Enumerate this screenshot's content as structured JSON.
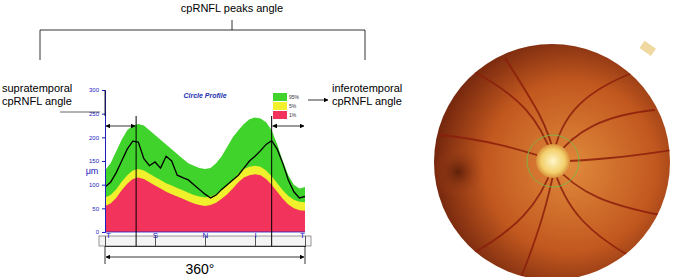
{
  "chart_data": {
    "type": "line",
    "title": "Circle Profile",
    "y_label": "μm",
    "x": [
      0,
      10,
      20,
      30,
      40,
      50,
      60,
      70,
      80,
      90,
      100,
      110,
      120,
      130,
      140,
      150,
      160,
      170,
      180,
      190,
      200,
      210,
      220,
      230,
      240,
      250,
      260,
      270,
      280,
      290,
      300,
      310,
      320,
      330,
      340,
      350,
      360
    ],
    "xlim": [
      0,
      360
    ],
    "xticks": [
      {
        "value": 0,
        "label": "T"
      },
      {
        "value": 90,
        "label": "S"
      },
      {
        "value": 180,
        "label": "N"
      },
      {
        "value": 270,
        "label": "I"
      },
      {
        "value": 360,
        "label": "T"
      }
    ],
    "ylim": [
      0,
      300
    ],
    "yticks": [
      0,
      50,
      100,
      150,
      200,
      250,
      300
    ],
    "grid": false,
    "legend": "upper right",
    "series": [
      {
        "name": "95%",
        "type": "area",
        "color": "#3fd32b",
        "values": [
          130,
          145,
          170,
          195,
          215,
          225,
          228,
          225,
          215,
          205,
          195,
          185,
          175,
          165,
          155,
          145,
          140,
          135,
          133,
          135,
          145,
          160,
          180,
          200,
          215,
          228,
          238,
          242,
          240,
          232,
          215,
          185,
          150,
          120,
          100,
          92,
          95
        ]
      },
      {
        "name": "5%",
        "type": "area",
        "color": "#f0f02c",
        "values": [
          73,
          78,
          90,
          106,
          120,
          130,
          133,
          130,
          123,
          116,
          110,
          103,
          98,
          93,
          88,
          83,
          78,
          75,
          73,
          75,
          80,
          88,
          98,
          110,
          123,
          133,
          138,
          140,
          138,
          130,
          118,
          103,
          88,
          76,
          68,
          64,
          63
        ]
      },
      {
        "name": "1%",
        "type": "area",
        "color": "#f2335c",
        "values": [
          55,
          60,
          72,
          88,
          102,
          112,
          115,
          112,
          105,
          98,
          92,
          85,
          80,
          75,
          70,
          65,
          60,
          57,
          55,
          57,
          62,
          70,
          80,
          92,
          105,
          115,
          120,
          122,
          120,
          112,
          100,
          85,
          70,
          58,
          50,
          46,
          45
        ]
      },
      {
        "type": "line",
        "color": "#000000",
        "values": [
          95,
          105,
          125,
          150,
          175,
          192,
          190,
          155,
          140,
          148,
          135,
          160,
          150,
          120,
          115,
          110,
          100,
          90,
          80,
          72,
          78,
          90,
          100,
          110,
          120,
          135,
          150,
          160,
          172,
          185,
          193,
          175,
          145,
          110,
          85,
          72,
          75
        ]
      }
    ],
    "annotations": [
      {
        "text": "cpRNFL peaks angle"
      },
      {
        "text": [
          "supratemporal",
          "cpRNFL angle"
        ],
        "x": 56
      },
      {
        "text": [
          "inferotemporal",
          "cpRNFL angle"
        ],
        "x": 300
      },
      {
        "text": "360°"
      }
    ]
  }
}
